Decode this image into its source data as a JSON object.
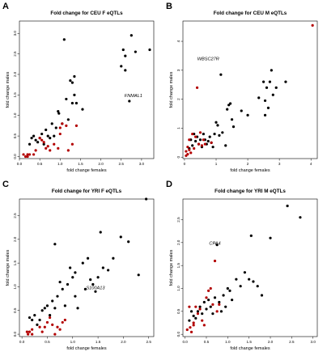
{
  "colors": {
    "black_points": "#000000",
    "red_points": "#b30000",
    "frame": "#000000"
  },
  "chart_data": [
    {
      "panel": "A",
      "type": "scatter",
      "title": "Fold change for CEU F eQTLs",
      "xlabel": "fold change females",
      "ylabel": "fold change males",
      "xlim": [
        0,
        3.3
      ],
      "ylim": [
        -0.05,
        3.3
      ],
      "xticks": [
        "0.0",
        "0.5",
        "1.0",
        "1.5",
        "2.0",
        "2.5",
        "3.0"
      ],
      "yticks": [
        "0.0",
        "0.5",
        "1.0",
        "1.5",
        "2.0",
        "2.5",
        "3.0"
      ],
      "annotations": [
        {
          "text": "FNMAL1",
          "x": 2.8,
          "y": 1.45
        }
      ],
      "series": [
        {
          "color": "black",
          "points": [
            [
              0.25,
              0.3
            ],
            [
              0.3,
              0.45
            ],
            [
              0.35,
              0.5
            ],
            [
              0.4,
              0.4
            ],
            [
              0.45,
              0.35
            ],
            [
              0.5,
              0.45
            ],
            [
              0.55,
              0.55
            ],
            [
              0.6,
              0.3
            ],
            [
              0.65,
              0.65
            ],
            [
              0.7,
              0.5
            ],
            [
              0.75,
              0.45
            ],
            [
              0.8,
              0.8
            ],
            [
              0.85,
              0.5
            ],
            [
              0.9,
              0.7
            ],
            [
              0.95,
              1.1
            ],
            [
              0.97,
              1.05
            ],
            [
              1.05,
              0.8
            ],
            [
              1.1,
              2.85
            ],
            [
              1.15,
              1.4
            ],
            [
              1.2,
              0.9
            ],
            [
              1.25,
              1.85
            ],
            [
              1.3,
              1.8
            ],
            [
              1.3,
              1.3
            ],
            [
              1.35,
              1.95
            ],
            [
              1.35,
              1.5
            ],
            [
              1.4,
              1.3
            ],
            [
              1.55,
              1.15
            ],
            [
              2.5,
              2.2
            ],
            [
              2.55,
              2.6
            ],
            [
              2.6,
              2.45
            ],
            [
              2.6,
              2.1
            ],
            [
              2.7,
              1.35
            ],
            [
              2.75,
              2.95
            ],
            [
              2.85,
              2.55
            ],
            [
              3.2,
              2.6
            ]
          ]
        },
        {
          "color": "red",
          "points": [
            [
              0.1,
              0.05
            ],
            [
              0.15,
              0.0
            ],
            [
              0.2,
              0.05
            ],
            [
              0.2,
              0.0
            ],
            [
              0.25,
              0.05
            ],
            [
              0.35,
              0.05
            ],
            [
              0.4,
              0.15
            ],
            [
              0.5,
              0.45
            ],
            [
              0.55,
              0.4
            ],
            [
              0.6,
              0.35
            ],
            [
              0.65,
              0.2
            ],
            [
              0.7,
              0.25
            ],
            [
              0.75,
              0.15
            ],
            [
              0.85,
              0.3
            ],
            [
              0.95,
              0.2
            ],
            [
              1.0,
              0.55
            ],
            [
              1.0,
              0.7
            ],
            [
              1.05,
              0.8
            ],
            [
              1.15,
              0.75
            ],
            [
              1.2,
              0.15
            ],
            [
              1.3,
              0.3
            ],
            [
              1.4,
              0.75
            ]
          ]
        }
      ]
    },
    {
      "panel": "B",
      "type": "scatter",
      "title": "Fold change for CEU M eQTLs",
      "xlabel": "fold change females",
      "ylabel": "fold change males",
      "xlim": [
        -0.05,
        4.2
      ],
      "ylim": [
        -0.05,
        4.7
      ],
      "xticks": [
        "0",
        "1",
        "2",
        "3",
        "4"
      ],
      "yticks": [
        "0",
        "1",
        "2",
        "3",
        "4"
      ],
      "annotations": [
        {
          "text": "WBSC27R",
          "x": 0.75,
          "y": 3.35
        }
      ],
      "series": [
        {
          "color": "black",
          "points": [
            [
              0.15,
              0.3
            ],
            [
              0.2,
              0.6
            ],
            [
              0.25,
              0.4
            ],
            [
              0.3,
              0.8
            ],
            [
              0.35,
              0.55
            ],
            [
              0.4,
              0.7
            ],
            [
              0.45,
              0.45
            ],
            [
              0.5,
              0.6
            ],
            [
              0.55,
              0.35
            ],
            [
              0.6,
              0.8
            ],
            [
              0.65,
              0.6
            ],
            [
              0.7,
              0.45
            ],
            [
              0.75,
              0.55
            ],
            [
              0.8,
              0.7
            ],
            [
              0.85,
              0.5
            ],
            [
              0.9,
              0.35
            ],
            [
              0.95,
              0.8
            ],
            [
              1.0,
              1.2
            ],
            [
              1.05,
              1.1
            ],
            [
              1.1,
              0.75
            ],
            [
              1.15,
              2.85
            ],
            [
              1.2,
              0.85
            ],
            [
              1.3,
              0.4
            ],
            [
              1.35,
              1.65
            ],
            [
              1.4,
              1.8
            ],
            [
              1.45,
              1.85
            ],
            [
              1.5,
              1.3
            ],
            [
              1.55,
              1.05
            ],
            [
              1.8,
              1.6
            ],
            [
              2.0,
              1.45
            ],
            [
              2.35,
              2.05
            ],
            [
              2.5,
              2.6
            ],
            [
              2.55,
              1.95
            ],
            [
              2.6,
              2.4
            ],
            [
              2.65,
              1.7
            ],
            [
              2.7,
              2.6
            ],
            [
              2.75,
              3.0
            ],
            [
              2.8,
              2.15
            ],
            [
              2.9,
              2.4
            ],
            [
              3.2,
              2.6
            ],
            [
              2.55,
              1.45
            ]
          ]
        },
        {
          "color": "red",
          "points": [
            [
              0.05,
              0.05
            ],
            [
              0.05,
              0.2
            ],
            [
              0.1,
              0.1
            ],
            [
              0.1,
              0.35
            ],
            [
              0.15,
              0.6
            ],
            [
              0.15,
              0.25
            ],
            [
              0.2,
              0.15
            ],
            [
              0.25,
              0.8
            ],
            [
              0.3,
              0.3
            ],
            [
              0.35,
              0.7
            ],
            [
              0.4,
              2.4
            ],
            [
              0.45,
              0.45
            ],
            [
              0.5,
              0.85
            ],
            [
              0.55,
              0.4
            ],
            [
              0.6,
              0.6
            ],
            [
              0.65,
              0.45
            ],
            [
              0.85,
              0.5
            ],
            [
              4.05,
              4.55
            ]
          ]
        }
      ]
    },
    {
      "panel": "C",
      "type": "scatter",
      "title": "Fold change for YRI F eQTLs",
      "xlabel": "fold change females",
      "ylabel": "fold change males",
      "xlim": [
        -0.05,
        2.6
      ],
      "ylim": [
        -0.05,
        2.85
      ],
      "xticks": [
        "0.0",
        "0.5",
        "1.0",
        "1.5",
        "2.0",
        "2.5"
      ],
      "yticks": [
        "0.0",
        "0.5",
        "1.0",
        "1.5",
        "2.0",
        "2.5"
      ],
      "annotations": [
        {
          "text": "S100A13",
          "x": 1.45,
          "y": 0.95
        }
      ],
      "series": [
        {
          "color": "black",
          "points": [
            [
              0.15,
              0.35
            ],
            [
              0.2,
              0.3
            ],
            [
              0.25,
              0.4
            ],
            [
              0.3,
              0.2
            ],
            [
              0.35,
              0.3
            ],
            [
              0.4,
              0.5
            ],
            [
              0.45,
              0.55
            ],
            [
              0.5,
              0.6
            ],
            [
              0.55,
              0.4
            ],
            [
              0.6,
              0.7
            ],
            [
              0.65,
              1.9
            ],
            [
              0.65,
              0.55
            ],
            [
              0.7,
              0.8
            ],
            [
              0.75,
              1.1
            ],
            [
              0.8,
              0.95
            ],
            [
              0.85,
              0.6
            ],
            [
              0.9,
              1.05
            ],
            [
              0.95,
              1.4
            ],
            [
              1.0,
              1.2
            ],
            [
              1.05,
              1.3
            ],
            [
              1.05,
              0.8
            ],
            [
              1.1,
              0.55
            ],
            [
              1.2,
              1.5
            ],
            [
              1.25,
              0.95
            ],
            [
              1.3,
              1.6
            ],
            [
              1.35,
              1.15
            ],
            [
              1.4,
              1.05
            ],
            [
              1.45,
              0.9
            ],
            [
              1.5,
              1.2
            ],
            [
              1.55,
              2.15
            ],
            [
              1.6,
              1.4
            ],
            [
              1.7,
              1.35
            ],
            [
              1.8,
              1.6
            ],
            [
              1.95,
              2.05
            ],
            [
              2.1,
              1.95
            ],
            [
              2.3,
              1.25
            ],
            [
              2.45,
              2.85
            ]
          ]
        },
        {
          "color": "red",
          "points": [
            [
              0.1,
              0.05
            ],
            [
              0.12,
              0.0
            ],
            [
              0.15,
              0.05
            ],
            [
              0.2,
              0.0
            ],
            [
              0.2,
              0.1
            ],
            [
              0.35,
              0.15
            ],
            [
              0.4,
              0.05
            ],
            [
              0.45,
              0.15
            ],
            [
              0.5,
              0.25
            ],
            [
              0.55,
              0.35
            ],
            [
              0.6,
              0.2
            ],
            [
              0.65,
              0.0
            ],
            [
              0.7,
              0.15
            ],
            [
              0.75,
              0.1
            ],
            [
              0.8,
              0.25
            ],
            [
              0.85,
              0.3
            ]
          ]
        }
      ]
    },
    {
      "panel": "D",
      "type": "scatter",
      "title": "Fold change for YRI M eQTLs",
      "xlabel": "fold change females",
      "ylabel": "fold change males",
      "xlim": [
        -0.05,
        3.1
      ],
      "ylim": [
        -0.05,
        2.95
      ],
      "xticks": [
        "0.0",
        "0.5",
        "1.0",
        "1.5",
        "2.0",
        "2.5",
        "3.0"
      ],
      "yticks": [
        "0.0",
        "0.5",
        "1.0",
        "1.5",
        "2.0",
        "2.5"
      ],
      "annotations": [
        {
          "text": "CPA4",
          "x": 0.7,
          "y": 1.95
        }
      ],
      "series": [
        {
          "color": "black",
          "points": [
            [
              0.1,
              0.3
            ],
            [
              0.15,
              0.5
            ],
            [
              0.2,
              0.4
            ],
            [
              0.25,
              0.35
            ],
            [
              0.3,
              0.5
            ],
            [
              0.35,
              0.6
            ],
            [
              0.4,
              0.45
            ],
            [
              0.45,
              0.7
            ],
            [
              0.5,
              0.55
            ],
            [
              0.55,
              0.75
            ],
            [
              0.6,
              0.6
            ],
            [
              0.65,
              0.45
            ],
            [
              0.7,
              0.8
            ],
            [
              0.75,
              1.95
            ],
            [
              0.8,
              0.7
            ],
            [
              0.85,
              0.5
            ],
            [
              0.9,
              0.85
            ],
            [
              0.95,
              0.6
            ],
            [
              1.0,
              1.0
            ],
            [
              1.05,
              0.95
            ],
            [
              1.1,
              0.75
            ],
            [
              1.2,
              1.2
            ],
            [
              1.3,
              1.05
            ],
            [
              1.4,
              1.35
            ],
            [
              1.5,
              1.2
            ],
            [
              1.55,
              2.15
            ],
            [
              1.6,
              1.15
            ],
            [
              1.7,
              1.05
            ],
            [
              1.8,
              0.85
            ],
            [
              2.0,
              2.1
            ],
            [
              2.4,
              2.8
            ],
            [
              2.7,
              2.55
            ]
          ]
        },
        {
          "color": "red",
          "points": [
            [
              0.05,
              0.1
            ],
            [
              0.1,
              0.6
            ],
            [
              0.12,
              0.15
            ],
            [
              0.15,
              0.05
            ],
            [
              0.2,
              0.25
            ],
            [
              0.2,
              0.2
            ],
            [
              0.25,
              0.6
            ],
            [
              0.3,
              0.45
            ],
            [
              0.35,
              0.55
            ],
            [
              0.4,
              0.3
            ],
            [
              0.45,
              0.2
            ],
            [
              0.5,
              0.8
            ],
            [
              0.55,
              0.95
            ],
            [
              0.6,
              1.0
            ],
            [
              0.65,
              0.65
            ],
            [
              0.7,
              1.6
            ],
            [
              0.75,
              0.5
            ],
            [
              0.8,
              0.65
            ]
          ]
        }
      ]
    }
  ]
}
